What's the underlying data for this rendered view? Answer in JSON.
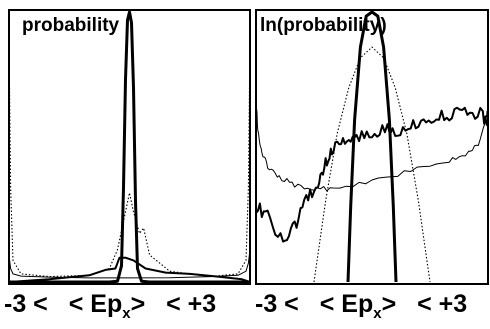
{
  "chart_data": [
    {
      "type": "line",
      "title": "probability",
      "x_range": [
        -3,
        3
      ],
      "axis_label": {
        "left": "-3 <",
        "middle": "< Ep",
        "sub": "x",
        "close": ">",
        "right": "< +3"
      },
      "series": [
        {
          "style": "thick",
          "x": [
            -3,
            -0.5,
            -0.3,
            -0.2,
            -0.15,
            -0.1,
            -0.05,
            0,
            0.05,
            0.1,
            0.15,
            0.2,
            0.3,
            0.5,
            1.0,
            3
          ],
          "y": [
            0.0,
            0.0,
            0.003,
            0.06,
            0.35,
            0.75,
            0.97,
            1.0,
            0.96,
            0.72,
            0.3,
            0.05,
            0.003,
            0.0,
            0.0,
            0.0
          ]
        },
        {
          "style": "dotted",
          "x": [
            -3,
            -2.96,
            -2.9,
            -2.7,
            -2.0,
            -1.0,
            -0.5,
            -0.3,
            -0.1,
            0,
            0.1,
            0.25,
            0.35,
            0.5,
            1.0,
            2.0,
            2.7,
            2.9,
            2.96,
            3
          ],
          "y": [
            0.9,
            0.35,
            0.08,
            0.03,
            0.02,
            0.025,
            0.05,
            0.12,
            0.26,
            0.33,
            0.26,
            0.18,
            0.2,
            0.1,
            0.04,
            0.02,
            0.03,
            0.08,
            0.35,
            0.9
          ]
        },
        {
          "style": "thin",
          "x": [
            -3,
            -2.96,
            -2.9,
            -2.7,
            -2.0,
            -1.0,
            0,
            1.0,
            2.0,
            2.7,
            2.9,
            2.96,
            3
          ],
          "y": [
            0.1,
            0.05,
            0.03,
            0.022,
            0.018,
            0.015,
            0.015,
            0.016,
            0.02,
            0.025,
            0.04,
            0.07,
            0.12
          ]
        },
        {
          "style": "medium",
          "x": [
            -3,
            -2.0,
            -1.0,
            -0.6,
            -0.35,
            -0.25,
            -0.1,
            0.1,
            0.4,
            0.9,
            1.5,
            2.2,
            2.8,
            3
          ],
          "y": [
            0.0,
            0.01,
            0.025,
            0.045,
            0.05,
            0.09,
            0.09,
            0.08,
            0.05,
            0.035,
            0.03,
            0.02,
            0.01,
            0.0
          ]
        }
      ]
    },
    {
      "type": "line",
      "title": "ln(probability)",
      "x_range": [
        -3,
        3
      ],
      "axis_label": {
        "left": "-3 <",
        "middle": "< Ep",
        "sub": "x",
        "close": ">",
        "right": "< +3"
      },
      "series": [
        {
          "style": "thick",
          "x": [
            -0.62,
            -0.55,
            -0.45,
            -0.3,
            -0.15,
            0,
            0.15,
            0.3,
            0.45,
            0.55,
            0.62
          ],
          "y": [
            0.0,
            0.28,
            0.6,
            0.87,
            0.985,
            1.0,
            0.985,
            0.87,
            0.6,
            0.28,
            0.0
          ]
        },
        {
          "style": "dotted",
          "x": [
            -1.5,
            -1.2,
            -0.9,
            -0.6,
            -0.3,
            0,
            0.3,
            0.6,
            0.9,
            1.2,
            1.5
          ],
          "y": [
            0.0,
            0.3,
            0.55,
            0.72,
            0.83,
            0.87,
            0.83,
            0.72,
            0.55,
            0.3,
            0.0
          ]
        },
        {
          "style": "thin",
          "x": [
            -3,
            -2.95,
            -2.85,
            -2.7,
            -2.4,
            -2.0,
            -1.5,
            -1.0,
            0,
            1.0,
            2.0,
            2.5,
            2.8,
            2.95,
            3
          ],
          "y": [
            0.68,
            0.56,
            0.48,
            0.43,
            0.39,
            0.36,
            0.345,
            0.345,
            0.37,
            0.41,
            0.45,
            0.48,
            0.52,
            0.6,
            0.66
          ],
          "jitter": 0.01
        },
        {
          "style": "medium",
          "x": [
            -3,
            -2.7,
            -2.3,
            -2.0,
            -1.7,
            -1.4,
            -1.2,
            -1.0,
            -0.7,
            -0.4,
            0.0,
            0.4,
            0.8,
            1.2,
            1.6,
            2.0,
            2.4,
            2.8,
            3
          ],
          "y": [
            0.28,
            0.24,
            0.16,
            0.2,
            0.3,
            0.36,
            0.44,
            0.5,
            0.52,
            0.54,
            0.55,
            0.56,
            0.57,
            0.58,
            0.6,
            0.62,
            0.63,
            0.62,
            0.6
          ],
          "jitter": 0.025
        }
      ]
    }
  ]
}
